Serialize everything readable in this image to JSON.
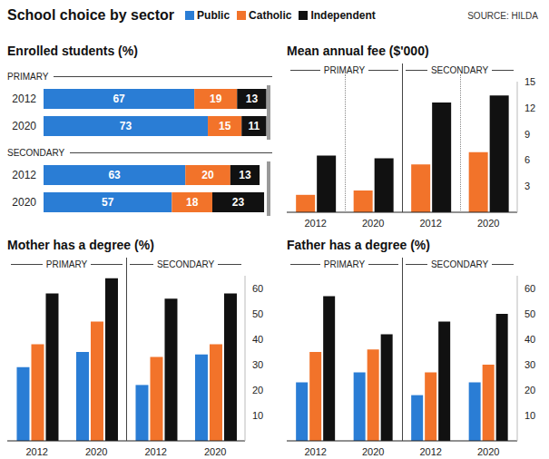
{
  "title": "School choice by sector",
  "source": "SOURCE: HILDA",
  "chart_data": [
    {
      "type": "bar",
      "title": "Enrolled students (%)",
      "orientation": "horizontal",
      "stacked": true,
      "data_labels": true,
      "legend": "top",
      "tick_labels": "y",
      "group_labels": [
        "PRIMARY",
        "SECONDARY"
      ],
      "categories": [
        "2012",
        "2020",
        "2012",
        "2020"
      ],
      "xlim": [
        0,
        100
      ],
      "series": [
        {
          "name": "Public",
          "color": "#2a7dd5",
          "values": [
            67,
            73,
            63,
            57
          ]
        },
        {
          "name": "Catholic",
          "color": "#f2732a",
          "values": [
            19,
            15,
            20,
            18
          ]
        },
        {
          "name": "Independent",
          "color": "#111111",
          "values": [
            13,
            11,
            13,
            23
          ]
        }
      ]
    },
    {
      "type": "bar",
      "title": "Mean annual fee ($'000)",
      "grid": false,
      "group_labels": [
        "PRIMARY",
        "SECONDARY"
      ],
      "categories": [
        "2012",
        "2020",
        "2012",
        "2020"
      ],
      "ylim": [
        0,
        15
      ],
      "yticks": [
        3,
        6,
        9,
        12,
        15
      ],
      "series": [
        {
          "name": "Catholic",
          "color": "#f2732a",
          "values": [
            2.0,
            2.5,
            5.5,
            6.9
          ]
        },
        {
          "name": "Independent",
          "color": "#111111",
          "values": [
            6.5,
            6.2,
            12.6,
            13.4
          ]
        }
      ]
    },
    {
      "type": "bar",
      "title": "Mother has a degree (%)",
      "grid": false,
      "group_labels": [
        "PRIMARY",
        "SECONDARY"
      ],
      "categories": [
        "2012",
        "2020",
        "2012",
        "2020"
      ],
      "ylim": [
        0,
        65
      ],
      "yticks": [
        10,
        20,
        30,
        40,
        50,
        60
      ],
      "series": [
        {
          "name": "Public",
          "color": "#2a7dd5",
          "values": [
            29,
            35,
            22,
            34
          ]
        },
        {
          "name": "Catholic",
          "color": "#f2732a",
          "values": [
            38,
            47,
            33,
            38
          ]
        },
        {
          "name": "Independent",
          "color": "#111111",
          "values": [
            58,
            64,
            56,
            58
          ]
        }
      ]
    },
    {
      "type": "bar",
      "title": "Father has a degree (%)",
      "grid": false,
      "group_labels": [
        "PRIMARY",
        "SECONDARY"
      ],
      "categories": [
        "2012",
        "2020",
        "2012",
        "2020"
      ],
      "ylim": [
        0,
        65
      ],
      "yticks": [
        10,
        20,
        30,
        40,
        50,
        60
      ],
      "series": [
        {
          "name": "Public",
          "color": "#2a7dd5",
          "values": [
            23,
            27,
            18,
            23
          ]
        },
        {
          "name": "Catholic",
          "color": "#f2732a",
          "values": [
            35,
            36,
            27,
            30
          ]
        },
        {
          "name": "Independent",
          "color": "#111111",
          "values": [
            57,
            42,
            47,
            50
          ]
        }
      ]
    }
  ]
}
